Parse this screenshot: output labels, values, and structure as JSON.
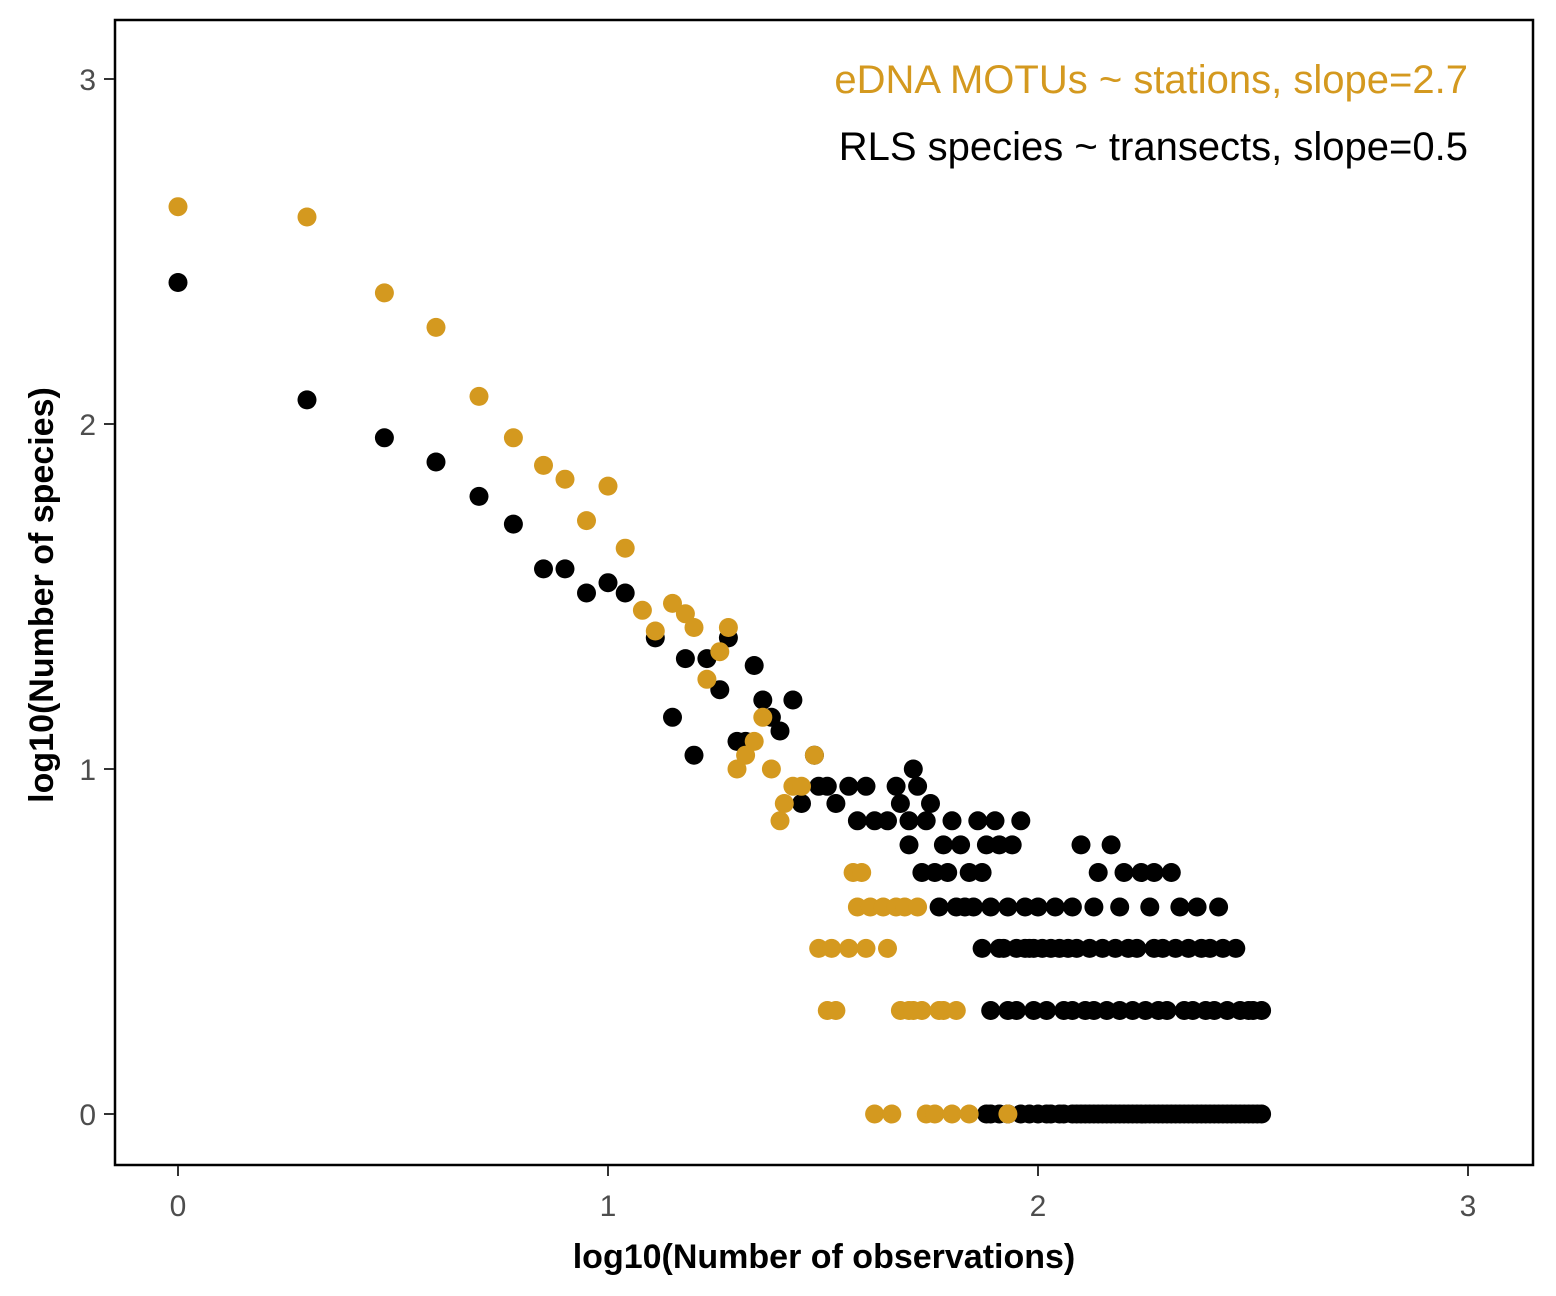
{
  "chart_data": {
    "type": "scatter",
    "xlabel": "log10(Number of observations)",
    "ylabel": "log10(Number of species)",
    "xlim": [
      -0.15,
      3.15
    ],
    "ylim": [
      -0.15,
      3.15
    ],
    "x_ticks": [
      "0",
      "1",
      "2",
      "3"
    ],
    "y_ticks": [
      "0",
      "1",
      "2",
      "3"
    ],
    "grid": false,
    "annotations": [
      {
        "text": "eDNA MOTUs ~ stations, slope=2.7",
        "color": "#d4991f"
      },
      {
        "text": "RLS species ~ transects, slope=0.5",
        "color": "#000000"
      }
    ],
    "series": [
      {
        "key": "rls",
        "color": "#000000",
        "points": [
          [
            0,
            2.41
          ],
          [
            0.3,
            2.07
          ],
          [
            0.48,
            1.96
          ],
          [
            0.6,
            1.89
          ],
          [
            0.7,
            1.79
          ],
          [
            0.78,
            1.71
          ],
          [
            0.85,
            1.58
          ],
          [
            0.9,
            1.58
          ],
          [
            0.95,
            1.51
          ],
          [
            1.0,
            1.54
          ],
          [
            1.04,
            1.51
          ],
          [
            1.11,
            1.38
          ],
          [
            1.15,
            1.15
          ],
          [
            1.18,
            1.32
          ],
          [
            1.2,
            1.04
          ],
          [
            1.23,
            1.32
          ],
          [
            1.26,
            1.23
          ],
          [
            1.28,
            1.38
          ],
          [
            1.3,
            1.08
          ],
          [
            1.32,
            1.08
          ],
          [
            1.34,
            1.3
          ],
          [
            1.36,
            1.2
          ],
          [
            1.38,
            1.15
          ],
          [
            1.4,
            1.11
          ],
          [
            1.43,
            1.2
          ],
          [
            1.45,
            0.9
          ],
          [
            1.48,
            1.04
          ],
          [
            1.49,
            0.95
          ],
          [
            1.51,
            0.95
          ],
          [
            1.53,
            0.9
          ],
          [
            1.56,
            0.95
          ],
          [
            1.58,
            0.85
          ],
          [
            1.6,
            0.95
          ],
          [
            1.62,
            0.85
          ],
          [
            1.65,
            0.85
          ],
          [
            1.67,
            0.95
          ],
          [
            1.68,
            0.9
          ],
          [
            1.7,
            0.78
          ],
          [
            1.71,
            1.0
          ],
          [
            1.72,
            0.95
          ],
          [
            1.74,
            0.85
          ],
          [
            1.75,
            0.9
          ],
          [
            1.76,
            0.7
          ],
          [
            1.78,
            0.78
          ],
          [
            1.8,
            0.85
          ],
          [
            1.81,
            0.6
          ],
          [
            1.82,
            0.78
          ],
          [
            1.84,
            0.7
          ],
          [
            1.85,
            0.6
          ],
          [
            1.86,
            0.85
          ],
          [
            1.87,
            0.7
          ],
          [
            1.88,
            0.78
          ],
          [
            1.89,
            0.6
          ],
          [
            1.9,
            0.85
          ],
          [
            1.91,
            0.78
          ],
          [
            1.93,
            0.6
          ],
          [
            1.94,
            0.78
          ],
          [
            1.95,
            0.48
          ],
          [
            1.96,
            0.85
          ],
          [
            1.97,
            0.6
          ],
          [
            1.98,
            0.48
          ],
          [
            2.0,
            0.6
          ],
          [
            2.01,
            0.48
          ],
          [
            2.02,
            0.3
          ],
          [
            2.03,
            0.48
          ],
          [
            2.04,
            0.6
          ],
          [
            2.05,
            0.48
          ],
          [
            2.06,
            0.3
          ],
          [
            2.07,
            0.48
          ],
          [
            2.08,
            0.6
          ],
          [
            2.09,
            0.48
          ],
          [
            2.1,
            0.78
          ],
          [
            2.11,
            0.3
          ],
          [
            2.12,
            0.48
          ],
          [
            2.13,
            0.6
          ],
          [
            2.14,
            0.7
          ],
          [
            2.15,
            0.48
          ],
          [
            2.16,
            0.3
          ],
          [
            2.17,
            0.78
          ],
          [
            2.18,
            0.48
          ],
          [
            2.19,
            0.6
          ],
          [
            2.2,
            0.7
          ],
          [
            2.21,
            0.48
          ],
          [
            2.22,
            0.3
          ],
          [
            2.23,
            0.48
          ],
          [
            2.24,
            0.7
          ],
          [
            2.25,
            0.3
          ],
          [
            2.26,
            0.6
          ],
          [
            2.27,
            0.7
          ],
          [
            2.28,
            0.3
          ],
          [
            2.29,
            0.48
          ],
          [
            2.3,
            0.3
          ],
          [
            2.31,
            0.7
          ],
          [
            2.32,
            0.48
          ],
          [
            2.33,
            0.6
          ],
          [
            2.34,
            0.3
          ],
          [
            2.35,
            0.48
          ],
          [
            2.36,
            0.3
          ],
          [
            2.37,
            0.6
          ],
          [
            2.38,
            0.48
          ],
          [
            2.39,
            0.3
          ],
          [
            2.4,
            0.48
          ],
          [
            2.41,
            0.3
          ],
          [
            2.42,
            0.6
          ],
          [
            2.43,
            0.48
          ],
          [
            2.44,
            0.3
          ],
          [
            2.46,
            0.48
          ],
          [
            2.47,
            0.3
          ],
          [
            2.49,
            0.3
          ],
          [
            2.5,
            0.3
          ],
          [
            2.52,
            0.3
          ],
          [
            1.7,
            0.85
          ],
          [
            1.73,
            0.7
          ],
          [
            1.77,
            0.6
          ],
          [
            1.79,
            0.7
          ],
          [
            1.83,
            0.6
          ],
          [
            1.92,
            0.48
          ],
          [
            1.99,
            0.3
          ],
          [
            1.87,
            0.48
          ],
          [
            1.89,
            0.3
          ],
          [
            1.91,
            0.48
          ],
          [
            1.93,
            0.3
          ],
          [
            1.95,
            0.3
          ],
          [
            1.97,
            0.48
          ],
          [
            1.99,
            0.48
          ],
          [
            2.08,
            0.3
          ],
          [
            2.13,
            0.3
          ],
          [
            2.19,
            0.3
          ],
          [
            2.27,
            0.48
          ],
          [
            1.88,
            0
          ],
          [
            1.89,
            0
          ],
          [
            1.91,
            0
          ],
          [
            1.93,
            0
          ],
          [
            1.96,
            0
          ],
          [
            1.98,
            0
          ],
          [
            2.0,
            0
          ],
          [
            2.02,
            0
          ],
          [
            2.03,
            0
          ],
          [
            2.05,
            0
          ],
          [
            2.06,
            0
          ],
          [
            2.08,
            0
          ],
          [
            2.09,
            0
          ],
          [
            2.1,
            0
          ],
          [
            2.11,
            0
          ],
          [
            2.12,
            0
          ],
          [
            2.13,
            0
          ],
          [
            2.14,
            0
          ],
          [
            2.15,
            0
          ],
          [
            2.16,
            0
          ],
          [
            2.17,
            0
          ],
          [
            2.18,
            0
          ],
          [
            2.19,
            0
          ],
          [
            2.2,
            0
          ],
          [
            2.21,
            0
          ],
          [
            2.22,
            0
          ],
          [
            2.23,
            0
          ],
          [
            2.24,
            0
          ],
          [
            2.25,
            0
          ],
          [
            2.26,
            0
          ],
          [
            2.27,
            0
          ],
          [
            2.28,
            0
          ],
          [
            2.29,
            0
          ],
          [
            2.3,
            0
          ],
          [
            2.31,
            0
          ],
          [
            2.32,
            0
          ],
          [
            2.33,
            0
          ],
          [
            2.34,
            0
          ],
          [
            2.35,
            0
          ],
          [
            2.36,
            0
          ],
          [
            2.37,
            0
          ],
          [
            2.38,
            0
          ],
          [
            2.39,
            0
          ],
          [
            2.4,
            0
          ],
          [
            2.41,
            0
          ],
          [
            2.42,
            0
          ],
          [
            2.43,
            0
          ],
          [
            2.44,
            0
          ],
          [
            2.45,
            0
          ],
          [
            2.46,
            0
          ],
          [
            2.47,
            0
          ],
          [
            2.48,
            0
          ],
          [
            2.49,
            0
          ],
          [
            2.5,
            0
          ],
          [
            2.51,
            0
          ],
          [
            2.52,
            0
          ]
        ]
      },
      {
        "key": "edna",
        "color": "#d4991f",
        "points": [
          [
            0,
            2.63
          ],
          [
            0.3,
            2.6
          ],
          [
            0.48,
            2.38
          ],
          [
            0.6,
            2.28
          ],
          [
            0.7,
            2.08
          ],
          [
            0.78,
            1.96
          ],
          [
            0.85,
            1.88
          ],
          [
            0.9,
            1.84
          ],
          [
            0.95,
            1.72
          ],
          [
            1.0,
            1.82
          ],
          [
            1.04,
            1.64
          ],
          [
            1.08,
            1.46
          ],
          [
            1.11,
            1.4
          ],
          [
            1.15,
            1.48
          ],
          [
            1.18,
            1.45
          ],
          [
            1.2,
            1.41
          ],
          [
            1.23,
            1.26
          ],
          [
            1.26,
            1.34
          ],
          [
            1.28,
            1.41
          ],
          [
            1.3,
            1.0
          ],
          [
            1.32,
            1.04
          ],
          [
            1.34,
            1.08
          ],
          [
            1.36,
            1.15
          ],
          [
            1.38,
            1.0
          ],
          [
            1.4,
            0.85
          ],
          [
            1.41,
            0.9
          ],
          [
            1.43,
            0.95
          ],
          [
            1.45,
            0.95
          ],
          [
            1.48,
            1.04
          ],
          [
            1.49,
            0.48
          ],
          [
            1.51,
            0.3
          ],
          [
            1.52,
            0.48
          ],
          [
            1.53,
            0.3
          ],
          [
            1.56,
            0.48
          ],
          [
            1.57,
            0.7
          ],
          [
            1.58,
            0.6
          ],
          [
            1.59,
            0.7
          ],
          [
            1.6,
            0.48
          ],
          [
            1.61,
            0.6
          ],
          [
            1.62,
            0
          ],
          [
            1.64,
            0.6
          ],
          [
            1.65,
            0.48
          ],
          [
            1.66,
            0
          ],
          [
            1.67,
            0.6
          ],
          [
            1.68,
            0.3
          ],
          [
            1.69,
            0.6
          ],
          [
            1.7,
            0.3
          ],
          [
            1.71,
            0.3
          ],
          [
            1.72,
            0.6
          ],
          [
            1.73,
            0.3
          ],
          [
            1.74,
            0
          ],
          [
            1.76,
            0
          ],
          [
            1.77,
            0.3
          ],
          [
            1.78,
            0.3
          ],
          [
            1.8,
            0
          ],
          [
            1.81,
            0.3
          ],
          [
            1.84,
            0
          ],
          [
            1.93,
            0
          ]
        ]
      }
    ]
  }
}
